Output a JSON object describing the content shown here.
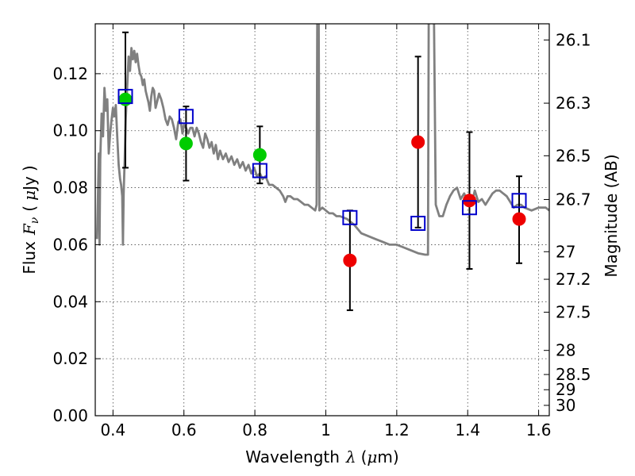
{
  "chart_data": {
    "type": "scatter",
    "title": "",
    "xlabel_parts": [
      "Wavelength",
      "λ",
      "(",
      "μ",
      "m)"
    ],
    "ylabel_parts": [
      "Flux",
      "F",
      "ν",
      "(",
      "μ",
      "Jy",
      ")"
    ],
    "y2label": "Magnitude (AB)",
    "xlim": [
      0.35,
      1.63
    ],
    "ylim": [
      0.0,
      0.1375
    ],
    "grid": true,
    "x_ticks": [
      {
        "value": 0.4,
        "label": "0.4"
      },
      {
        "value": 0.6,
        "label": "0.6"
      },
      {
        "value": 0.8,
        "label": "0.8"
      },
      {
        "value": 1.0,
        "label": "1"
      },
      {
        "value": 1.2,
        "label": "1.2"
      },
      {
        "value": 1.4,
        "label": "1.4"
      },
      {
        "value": 1.6,
        "label": "1.6"
      }
    ],
    "y_ticks": [
      {
        "value": 0.0,
        "label": "0.00"
      },
      {
        "value": 0.02,
        "label": "0.02"
      },
      {
        "value": 0.04,
        "label": "0.04"
      },
      {
        "value": 0.06,
        "label": "0.06"
      },
      {
        "value": 0.08,
        "label": "0.08"
      },
      {
        "value": 0.1,
        "label": "0.10"
      },
      {
        "value": 0.12,
        "label": "0.12"
      }
    ],
    "y2_ticks": [
      {
        "value": 26.1,
        "label": "26.1"
      },
      {
        "value": 26.3,
        "label": "26.3"
      },
      {
        "value": 26.5,
        "label": "26.5"
      },
      {
        "value": 26.7,
        "label": "26.7"
      },
      {
        "value": 27.0,
        "label": "27"
      },
      {
        "value": 27.2,
        "label": "27.2"
      },
      {
        "value": 27.5,
        "label": "27.5"
      },
      {
        "value": 28.0,
        "label": "28"
      },
      {
        "value": 28.5,
        "label": "28.5"
      },
      {
        "value": 29.0,
        "label": "29"
      },
      {
        "value": 30.0,
        "label": "30"
      }
    ],
    "series": [
      {
        "marker": "line",
        "color": "#808080",
        "points": [
          [
            0.355,
            0.062
          ],
          [
            0.358,
            0.08
          ],
          [
            0.36,
            0.092
          ],
          [
            0.362,
            0.06
          ],
          [
            0.364,
            0.09
          ],
          [
            0.368,
            0.106
          ],
          [
            0.372,
            0.098
          ],
          [
            0.376,
            0.115
          ],
          [
            0.38,
            0.107
          ],
          [
            0.384,
            0.111
          ],
          [
            0.388,
            0.092
          ],
          [
            0.392,
            0.099
          ],
          [
            0.396,
            0.104
          ],
          [
            0.4,
            0.108
          ],
          [
            0.404,
            0.105
          ],
          [
            0.408,
            0.109
          ],
          [
            0.412,
            0.098
          ],
          [
            0.416,
            0.088
          ],
          [
            0.42,
            0.083
          ],
          [
            0.423,
            0.081
          ],
          [
            0.426,
            0.077
          ],
          [
            0.428,
            0.06
          ],
          [
            0.43,
            0.078
          ],
          [
            0.433,
            0.09
          ],
          [
            0.436,
            0.104
          ],
          [
            0.44,
            0.115
          ],
          [
            0.444,
            0.126
          ],
          [
            0.448,
            0.121
          ],
          [
            0.452,
            0.129
          ],
          [
            0.456,
            0.125
          ],
          [
            0.46,
            0.128
          ],
          [
            0.464,
            0.124
          ],
          [
            0.468,
            0.127
          ],
          [
            0.472,
            0.123
          ],
          [
            0.476,
            0.12
          ],
          [
            0.48,
            0.119
          ],
          [
            0.484,
            0.116
          ],
          [
            0.488,
            0.118
          ],
          [
            0.492,
            0.114
          ],
          [
            0.496,
            0.112
          ],
          [
            0.5,
            0.11
          ],
          [
            0.504,
            0.107
          ],
          [
            0.508,
            0.112
          ],
          [
            0.512,
            0.115
          ],
          [
            0.516,
            0.114
          ],
          [
            0.52,
            0.108
          ],
          [
            0.524,
            0.11
          ],
          [
            0.53,
            0.113
          ],
          [
            0.536,
            0.111
          ],
          [
            0.542,
            0.108
          ],
          [
            0.548,
            0.104
          ],
          [
            0.554,
            0.102
          ],
          [
            0.56,
            0.105
          ],
          [
            0.566,
            0.104
          ],
          [
            0.572,
            0.101
          ],
          [
            0.578,
            0.097
          ],
          [
            0.584,
            0.103
          ],
          [
            0.59,
            0.104
          ],
          [
            0.596,
            0.099
          ],
          [
            0.6,
            0.102
          ],
          [
            0.606,
            0.101
          ],
          [
            0.612,
            0.099
          ],
          [
            0.618,
            0.101
          ],
          [
            0.624,
            0.101
          ],
          [
            0.63,
            0.098
          ],
          [
            0.636,
            0.101
          ],
          [
            0.642,
            0.099
          ],
          [
            0.648,
            0.096
          ],
          [
            0.654,
            0.094
          ],
          [
            0.66,
            0.099
          ],
          [
            0.666,
            0.097
          ],
          [
            0.672,
            0.094
          ],
          [
            0.678,
            0.096
          ],
          [
            0.684,
            0.092
          ],
          [
            0.69,
            0.095
          ],
          [
            0.696,
            0.09
          ],
          [
            0.702,
            0.093
          ],
          [
            0.71,
            0.09
          ],
          [
            0.718,
            0.092
          ],
          [
            0.726,
            0.089
          ],
          [
            0.734,
            0.091
          ],
          [
            0.742,
            0.088
          ],
          [
            0.75,
            0.09
          ],
          [
            0.758,
            0.087
          ],
          [
            0.766,
            0.089
          ],
          [
            0.774,
            0.086
          ],
          [
            0.782,
            0.088
          ],
          [
            0.79,
            0.085
          ],
          [
            0.798,
            0.087
          ],
          [
            0.806,
            0.084
          ],
          [
            0.814,
            0.085
          ],
          [
            0.822,
            0.083
          ],
          [
            0.83,
            0.084
          ],
          [
            0.84,
            0.081
          ],
          [
            0.85,
            0.081
          ],
          [
            0.86,
            0.08
          ],
          [
            0.87,
            0.079
          ],
          [
            0.88,
            0.077
          ],
          [
            0.886,
            0.075
          ],
          [
            0.892,
            0.077
          ],
          [
            0.9,
            0.077
          ],
          [
            0.91,
            0.076
          ],
          [
            0.92,
            0.076
          ],
          [
            0.93,
            0.075
          ],
          [
            0.94,
            0.074
          ],
          [
            0.95,
            0.074
          ],
          [
            0.96,
            0.073
          ],
          [
            0.97,
            0.072
          ],
          [
            0.974,
            0.074
          ],
          [
            0.976,
            0.138
          ],
          [
            0.98,
            0.138
          ],
          [
            0.982,
            0.072
          ],
          [
            0.99,
            0.073
          ],
          [
            1.0,
            0.072
          ],
          [
            1.01,
            0.071
          ],
          [
            1.02,
            0.071
          ],
          [
            1.03,
            0.07
          ],
          [
            1.04,
            0.07
          ],
          [
            1.06,
            0.069
          ],
          [
            1.08,
            0.067
          ],
          [
            1.1,
            0.064
          ],
          [
            1.12,
            0.063
          ],
          [
            1.14,
            0.062
          ],
          [
            1.16,
            0.061
          ],
          [
            1.18,
            0.06
          ],
          [
            1.2,
            0.06
          ],
          [
            1.22,
            0.059
          ],
          [
            1.24,
            0.058
          ],
          [
            1.26,
            0.057
          ],
          [
            1.28,
            0.0565
          ],
          [
            1.288,
            0.0565
          ],
          [
            1.29,
            0.138
          ],
          [
            1.305,
            0.138
          ],
          [
            1.31,
            0.074
          ],
          [
            1.32,
            0.07
          ],
          [
            1.33,
            0.07
          ],
          [
            1.34,
            0.074
          ],
          [
            1.35,
            0.077
          ],
          [
            1.36,
            0.079
          ],
          [
            1.37,
            0.08
          ],
          [
            1.38,
            0.076
          ],
          [
            1.39,
            0.078
          ],
          [
            1.4,
            0.075
          ],
          [
            1.41,
            0.074
          ],
          [
            1.42,
            0.079
          ],
          [
            1.43,
            0.075
          ],
          [
            1.44,
            0.076
          ],
          [
            1.45,
            0.074
          ],
          [
            1.46,
            0.076
          ],
          [
            1.47,
            0.078
          ],
          [
            1.48,
            0.079
          ],
          [
            1.49,
            0.079
          ],
          [
            1.5,
            0.078
          ],
          [
            1.51,
            0.077
          ],
          [
            1.52,
            0.075
          ],
          [
            1.53,
            0.073
          ],
          [
            1.54,
            0.074
          ],
          [
            1.55,
            0.074
          ],
          [
            1.56,
            0.073
          ],
          [
            1.58,
            0.072
          ],
          [
            1.6,
            0.073
          ],
          [
            1.62,
            0.073
          ],
          [
            1.63,
            0.072
          ]
        ]
      },
      {
        "marker": "circle",
        "color": "#00cc00",
        "points": [
          {
            "x": 0.435,
            "y": 0.111
          },
          {
            "x": 0.606,
            "y": 0.0955
          },
          {
            "x": 0.814,
            "y": 0.0915
          }
        ]
      },
      {
        "marker": "circle",
        "color": "#ee0000",
        "points": [
          {
            "x": 1.068,
            "y": 0.0545
          },
          {
            "x": 1.26,
            "y": 0.096
          },
          {
            "x": 1.405,
            "y": 0.0755
          },
          {
            "x": 1.545,
            "y": 0.069
          }
        ]
      },
      {
        "marker": "square",
        "color": "#0000cc",
        "points": [
          {
            "x": 0.435,
            "y": 0.112
          },
          {
            "x": 0.606,
            "y": 0.105
          },
          {
            "x": 0.814,
            "y": 0.086
          },
          {
            "x": 1.068,
            "y": 0.0695
          },
          {
            "x": 1.26,
            "y": 0.0675
          },
          {
            "x": 1.405,
            "y": 0.073
          },
          {
            "x": 1.545,
            "y": 0.0755
          }
        ]
      }
    ],
    "error_bars": [
      {
        "x": 0.435,
        "ylow": 0.087,
        "yhigh": 0.1345
      },
      {
        "x": 0.606,
        "ylow": 0.0825,
        "yhigh": 0.1085
      },
      {
        "x": 0.814,
        "ylow": 0.0815,
        "yhigh": 0.1015
      },
      {
        "x": 1.068,
        "ylow": 0.037,
        "yhigh": 0.072
      },
      {
        "x": 1.26,
        "ylow": 0.066,
        "yhigh": 0.126
      },
      {
        "x": 1.405,
        "ylow": 0.0515,
        "yhigh": 0.0995
      },
      {
        "x": 1.545,
        "ylow": 0.0535,
        "yhigh": 0.084
      }
    ]
  }
}
